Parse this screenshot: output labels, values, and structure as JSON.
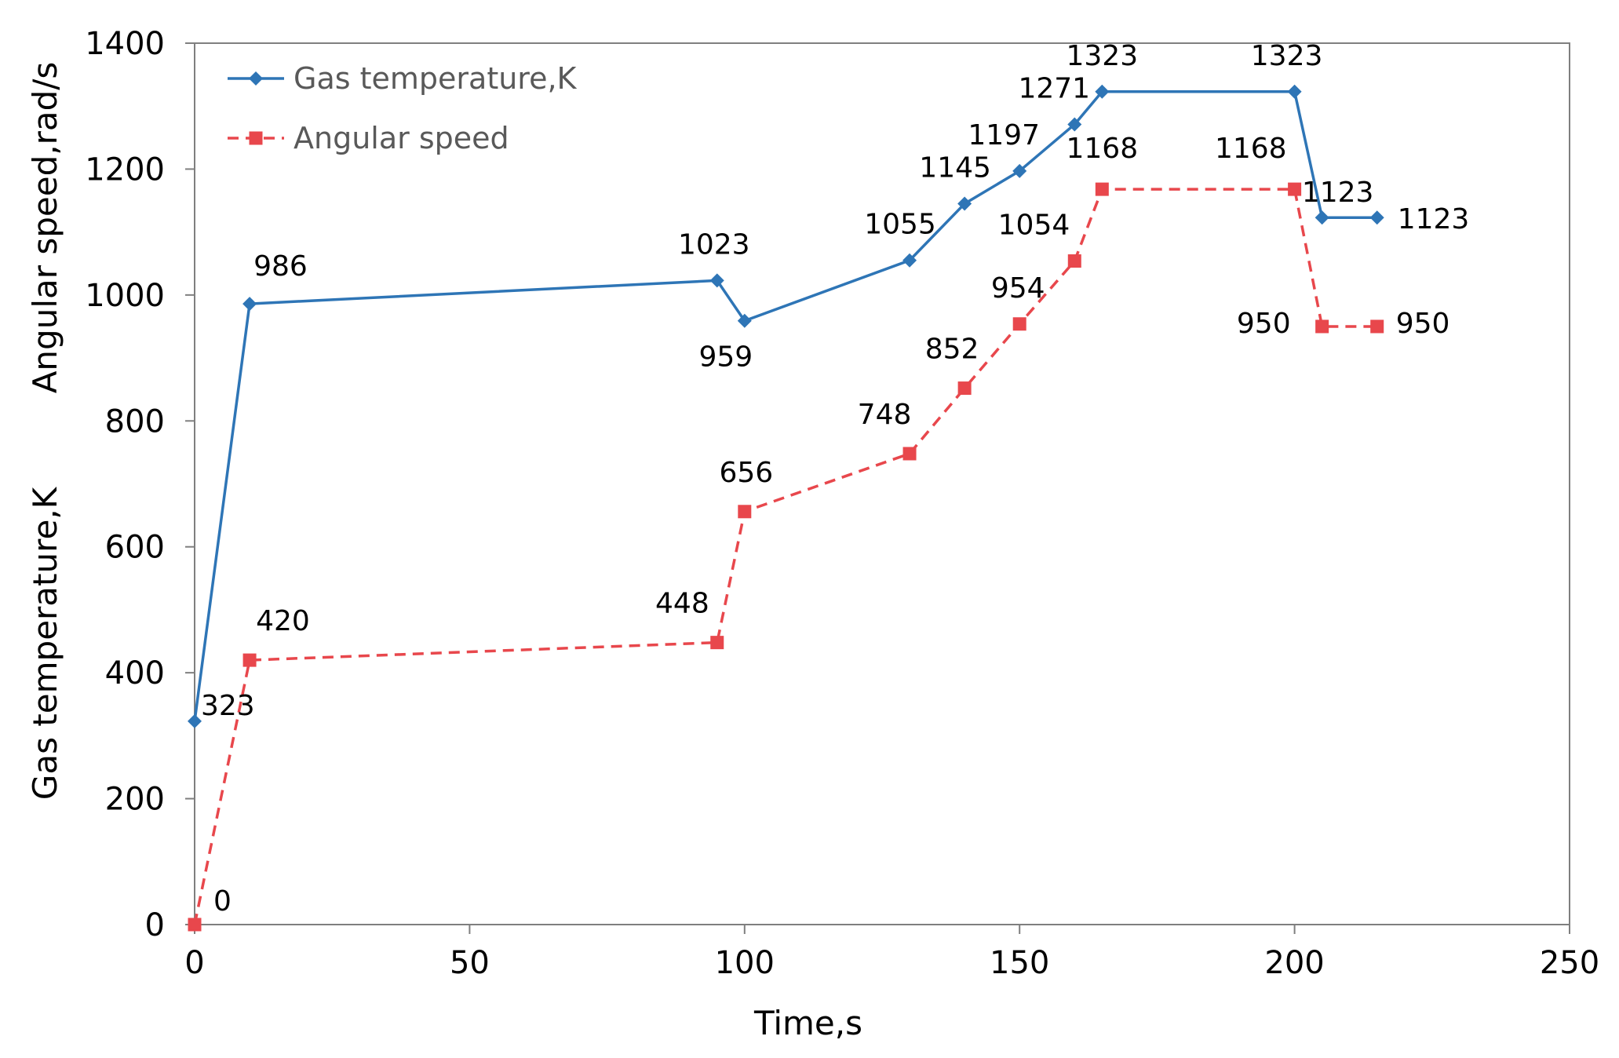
{
  "chart_data": {
    "type": "line",
    "title": "",
    "xlabel": "Time,s",
    "ylabel_upper": "Angular speed,rad/s",
    "ylabel_lower": "Gas temperature,K",
    "xlim": [
      0,
      250
    ],
    "ylim": [
      0,
      1400
    ],
    "xticks": [
      0,
      50,
      100,
      150,
      200,
      250
    ],
    "yticks": [
      0,
      200,
      400,
      600,
      800,
      1000,
      1200,
      1400
    ],
    "grid": false,
    "legend_position": "top-left",
    "series": [
      {
        "name": "Gas temperature,K",
        "color": "#2e75b6",
        "line_style": "solid",
        "marker": "diamond",
        "x": [
          0,
          10,
          95,
          100,
          130,
          140,
          150,
          160,
          165,
          200,
          205,
          215
        ],
        "values": [
          323,
          986,
          1023,
          959,
          1055,
          1145,
          1197,
          1271,
          1323,
          1323,
          1123,
          1123
        ],
        "labels": [
          "323",
          "986",
          "1023",
          "959",
          "1055",
          "1145",
          "1197",
          "1271",
          "1323",
          "1323",
          "1123",
          "1123"
        ]
      },
      {
        "name": "Angular speed",
        "color": "#e8474c",
        "line_style": "dashed",
        "marker": "square",
        "x": [
          0,
          10,
          95,
          100,
          130,
          140,
          150,
          160,
          165,
          200,
          205,
          215
        ],
        "values": [
          0,
          420,
          448,
          656,
          748,
          852,
          954,
          1054,
          1168,
          1168,
          950,
          950
        ],
        "labels": [
          "0",
          "420",
          "448",
          "656",
          "748",
          "852",
          "954",
          "1054",
          "1168",
          "1168",
          "950",
          "950"
        ]
      }
    ]
  }
}
